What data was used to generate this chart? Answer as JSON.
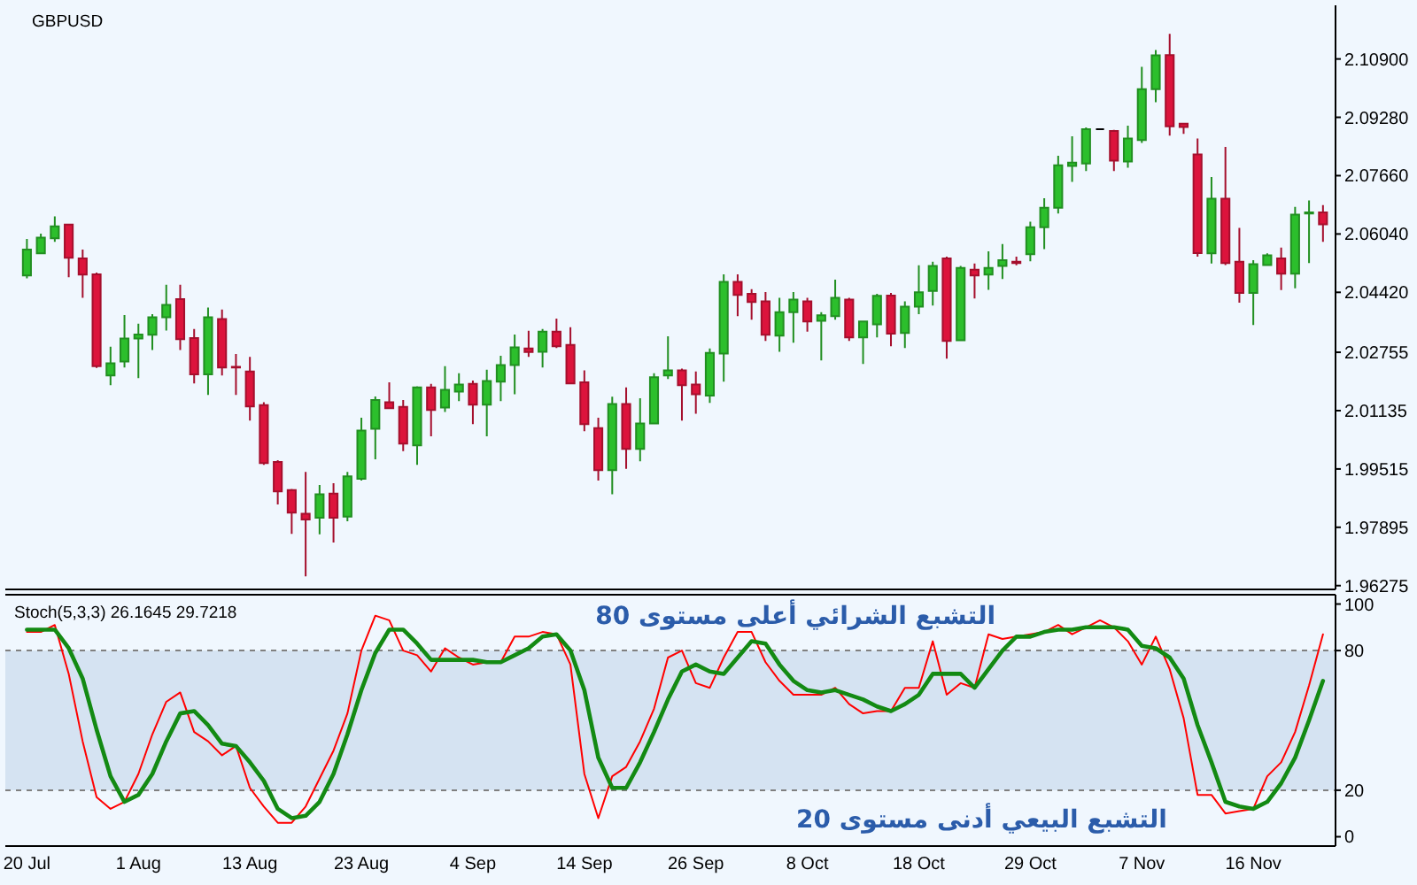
{
  "chart_data": [
    {
      "type": "candlestick",
      "title": "GBPUSD",
      "categories": [
        "20 Jul",
        null,
        null,
        null,
        null,
        null,
        null,
        null,
        "1 Aug",
        null,
        null,
        null,
        null,
        null,
        null,
        null,
        "13 Aug",
        null,
        null,
        null,
        null,
        null,
        null,
        null,
        "23 Aug",
        null,
        null,
        null,
        null,
        null,
        null,
        null,
        "4 Sep",
        null,
        null,
        null,
        null,
        null,
        null,
        null,
        "14 Sep",
        null,
        null,
        null,
        null,
        null,
        null,
        null,
        "26 Sep",
        null,
        null,
        null,
        null,
        null,
        null,
        null,
        "8 Oct",
        null,
        null,
        null,
        null,
        null,
        null,
        null,
        "18 Oct",
        null,
        null,
        null,
        null,
        null,
        null,
        null,
        "29 Oct",
        null,
        null,
        null,
        null,
        null,
        null,
        null,
        "7 Nov",
        null,
        null,
        null,
        null,
        null,
        null,
        null,
        "16 Nov",
        null,
        null,
        null,
        null,
        null
      ],
      "ohlc": [
        [
          2.0489,
          2.059,
          2.0481,
          2.0561
        ],
        [
          2.055,
          2.0605,
          2.055,
          2.0594
        ],
        [
          2.0592,
          2.0653,
          2.0582,
          2.0625
        ],
        [
          2.063,
          2.063,
          2.0484,
          2.0538
        ],
        [
          2.0536,
          2.0561,
          2.0427,
          2.0491
        ],
        [
          2.0492,
          2.0497,
          2.0232,
          2.0237
        ],
        [
          2.0211,
          2.0291,
          2.0184,
          2.0245
        ],
        [
          2.025,
          2.0379,
          2.0233,
          2.0314
        ],
        [
          2.0314,
          2.0355,
          2.0204,
          2.0325
        ],
        [
          2.0324,
          2.0381,
          2.0282,
          2.0373
        ],
        [
          2.0373,
          2.0463,
          2.0336,
          2.0407
        ],
        [
          2.0423,
          2.0463,
          2.0282,
          2.0312
        ],
        [
          2.0315,
          2.034,
          2.0189,
          2.0214
        ],
        [
          2.0214,
          2.04,
          2.0157,
          2.0373
        ],
        [
          2.0368,
          2.0394,
          2.0211,
          2.0233
        ],
        [
          2.0235,
          2.0271,
          2.0157,
          2.0233
        ],
        [
          2.0222,
          2.0263,
          2.0086,
          2.0125
        ],
        [
          2.0129,
          2.0137,
          1.9963,
          1.9968
        ],
        [
          1.9971,
          1.9976,
          1.9853,
          1.9889
        ],
        [
          1.9893,
          1.9896,
          1.9771,
          1.983
        ],
        [
          1.9827,
          1.9943,
          1.9653,
          1.9811
        ],
        [
          1.9816,
          1.9907,
          1.977,
          1.9881
        ],
        [
          1.9883,
          1.9912,
          1.9747,
          1.9816
        ],
        [
          1.9819,
          1.9943,
          1.9806,
          1.9931
        ],
        [
          1.9924,
          2.0094,
          1.9919,
          2.0058
        ],
        [
          2.0063,
          2.0153,
          1.9978,
          2.0143
        ],
        [
          2.0137,
          2.0192,
          2.012,
          2.012
        ],
        [
          2.0124,
          2.0143,
          2.0001,
          2.0022
        ],
        [
          2.0017,
          2.0181,
          1.9963,
          2.0178
        ],
        [
          2.0178,
          2.0188,
          2.0042,
          2.0115
        ],
        [
          2.0122,
          2.0237,
          2.011,
          2.0171
        ],
        [
          2.0166,
          2.0217,
          2.014,
          2.0186
        ],
        [
          2.0188,
          2.0197,
          2.0076,
          2.013
        ],
        [
          2.013,
          2.0227,
          2.0042,
          2.0196
        ],
        [
          2.0194,
          2.0266,
          2.014,
          2.024
        ],
        [
          2.024,
          2.0325,
          2.0159,
          2.0289
        ],
        [
          2.0286,
          2.0335,
          2.0263,
          2.0276
        ],
        [
          2.0277,
          2.034,
          2.0233,
          2.0333
        ],
        [
          2.0333,
          2.0369,
          2.0287,
          2.0292
        ],
        [
          2.0296,
          2.0345,
          2.0189,
          2.0189
        ],
        [
          2.0192,
          2.0225,
          2.0056,
          2.0076
        ],
        [
          2.0065,
          2.0094,
          1.9919,
          1.9948
        ],
        [
          1.9948,
          2.0152,
          1.9881,
          2.0132
        ],
        [
          2.0132,
          2.0178,
          1.9952,
          2.0007
        ],
        [
          2.0007,
          2.0148,
          1.9973,
          2.0078
        ],
        [
          2.0078,
          2.0217,
          2.0078,
          2.0206
        ],
        [
          2.0211,
          2.032,
          2.0201,
          2.0225
        ],
        [
          2.0225,
          2.023,
          2.0086,
          2.0184
        ],
        [
          2.0186,
          2.0222,
          2.0105,
          2.0159
        ],
        [
          2.0155,
          2.0286,
          2.0135,
          2.0274
        ],
        [
          2.0272,
          2.0492,
          2.0194,
          2.0471
        ],
        [
          2.0471,
          2.0492,
          2.0376,
          2.0435
        ],
        [
          2.0438,
          2.0451,
          2.0366,
          2.0415
        ],
        [
          2.0417,
          2.0443,
          2.0307,
          2.0324
        ],
        [
          2.0322,
          2.0427,
          2.0277,
          2.0387
        ],
        [
          2.0387,
          2.0443,
          2.0302,
          2.0422
        ],
        [
          2.0417,
          2.0427,
          2.0333,
          2.0361
        ],
        [
          2.0363,
          2.0387,
          2.0253,
          2.0378
        ],
        [
          2.0376,
          2.0477,
          2.0366,
          2.0427
        ],
        [
          2.0422,
          2.0427,
          2.0307,
          2.0317
        ],
        [
          2.0317,
          2.0363,
          2.0243,
          2.0361
        ],
        [
          2.0353,
          2.0438,
          2.0317,
          2.0432
        ],
        [
          2.0433,
          2.044,
          2.0292,
          2.0327
        ],
        [
          2.0329,
          2.0417,
          2.0287,
          2.0402
        ],
        [
          2.0402,
          2.0517,
          2.0381,
          2.0442
        ],
        [
          2.0446,
          2.0527,
          2.0405,
          2.0515
        ],
        [
          2.0536,
          2.0541,
          2.0258,
          2.0307
        ],
        [
          2.0309,
          2.0515,
          2.0309,
          2.051
        ],
        [
          2.0505,
          2.0522,
          2.0425,
          2.0489
        ],
        [
          2.0491,
          2.0556,
          2.0449,
          2.051
        ],
        [
          2.0515,
          2.0576,
          2.0479,
          2.0531
        ],
        [
          2.0527,
          2.0541,
          2.0517,
          2.0523
        ],
        [
          2.0548,
          2.0638,
          2.0528,
          2.0623
        ],
        [
          2.0623,
          2.0703,
          2.0562,
          2.0677
        ],
        [
          2.0677,
          2.0821,
          2.0661,
          2.0795
        ],
        [
          2.0793,
          2.0875,
          2.0749,
          2.0802
        ],
        [
          2.08,
          2.09,
          2.0779,
          2.0895
        ],
        [
          2.0895,
          2.0895,
          2.0895,
          2.0895
        ],
        [
          2.089,
          2.0893,
          2.0779,
          2.0808
        ],
        [
          2.0805,
          2.0905,
          2.0788,
          2.0869
        ],
        [
          2.0865,
          2.1068,
          2.0857,
          2.1006
        ],
        [
          2.1006,
          2.1115,
          2.097,
          2.11
        ],
        [
          2.1101,
          2.116,
          2.0877,
          2.0903
        ],
        [
          2.091,
          2.091,
          2.0882,
          2.0901
        ],
        [
          2.0825,
          2.0869,
          2.0541,
          2.0551
        ],
        [
          2.055,
          2.0762,
          2.0522,
          2.0702
        ],
        [
          2.0702,
          2.0846,
          2.0518,
          2.0523
        ],
        [
          2.0527,
          2.0621,
          2.0413,
          2.044
        ],
        [
          2.044,
          2.0531,
          2.0351,
          2.052
        ],
        [
          2.0518,
          2.055,
          2.0518,
          2.0545
        ],
        [
          2.0536,
          2.0566,
          2.0448,
          2.0494
        ],
        [
          2.0494,
          2.0679,
          2.0453,
          2.0658
        ],
        [
          2.0661,
          2.0697,
          2.0523,
          2.0664
        ],
        [
          2.0664,
          2.0684,
          2.0582,
          2.0631
        ]
      ],
      "colors": [
        "#2cbf2c",
        "#2cbf2c",
        "#2cbf2c",
        "#dc143c",
        "#dc143c",
        "#dc143c",
        "#2cbf2c",
        "#2cbf2c",
        "#2cbf2c",
        "#2cbf2c",
        "#2cbf2c",
        "#dc143c",
        "#dc143c",
        "#2cbf2c",
        "#dc143c",
        "#dc143c",
        "#dc143c",
        "#dc143c",
        "#dc143c",
        "#dc143c",
        "#dc143c",
        "#2cbf2c",
        "#dc143c",
        "#2cbf2c",
        "#2cbf2c",
        "#2cbf2c",
        "#dc143c",
        "#dc143c",
        "#2cbf2c",
        "#dc143c",
        "#2cbf2c",
        "#2cbf2c",
        "#dc143c",
        "#2cbf2c",
        "#2cbf2c",
        "#2cbf2c",
        "#dc143c",
        "#2cbf2c",
        "#dc143c",
        "#dc143c",
        "#dc143c",
        "#dc143c",
        "#2cbf2c",
        "#dc143c",
        "#2cbf2c",
        "#2cbf2c",
        "#2cbf2c",
        "#dc143c",
        "#dc143c",
        "#2cbf2c",
        "#2cbf2c",
        "#dc143c",
        "#dc143c",
        "#dc143c",
        "#2cbf2c",
        "#2cbf2c",
        "#dc143c",
        "#2cbf2c",
        "#2cbf2c",
        "#dc143c",
        "#2cbf2c",
        "#2cbf2c",
        "#dc143c",
        "#2cbf2c",
        "#2cbf2c",
        "#2cbf2c",
        "#dc143c",
        "#2cbf2c",
        "#dc143c",
        "#2cbf2c",
        "#2cbf2c",
        "#dc143c",
        "#2cbf2c",
        "#2cbf2c",
        "#2cbf2c",
        "#2cbf2c",
        "#2cbf2c",
        "#000000",
        "#dc143c",
        "#2cbf2c",
        "#2cbf2c",
        "#2cbf2c",
        "#dc143c",
        "#dc143c",
        "#dc143c",
        "#2cbf2c",
        "#dc143c",
        "#dc143c",
        "#2cbf2c",
        "#2cbf2c",
        "#dc143c",
        "#2cbf2c",
        "#2cbf2c",
        "#dc143c"
      ],
      "ylim": [
        1.9617,
        2.1239
      ],
      "yticks": [
        {
          "value": 2.109,
          "label": "2.10900"
        },
        {
          "value": 2.0928,
          "label": "2.09280"
        },
        {
          "value": 2.0766,
          "label": "2.07660"
        },
        {
          "value": 2.0604,
          "label": "2.06040"
        },
        {
          "value": 2.0442,
          "label": "2.04420"
        },
        {
          "value": 2.02755,
          "label": "2.02755"
        },
        {
          "value": 2.01135,
          "label": "2.01135"
        },
        {
          "value": 1.99515,
          "label": "1.99515"
        },
        {
          "value": 1.97895,
          "label": "1.97895"
        },
        {
          "value": 1.96275,
          "label": "1.96275"
        }
      ],
      "tick_labels": "y"
    },
    {
      "type": "line",
      "title": "Stoch(5,3,3) 26.1645 29.7218",
      "categories": [
        "20 Jul",
        null,
        null,
        null,
        null,
        null,
        null,
        null,
        "1 Aug",
        null,
        null,
        null,
        null,
        null,
        null,
        null,
        "13 Aug",
        null,
        null,
        null,
        null,
        null,
        null,
        null,
        "23 Aug",
        null,
        null,
        null,
        null,
        null,
        null,
        null,
        "4 Sep",
        null,
        null,
        null,
        null,
        null,
        null,
        null,
        "14 Sep",
        null,
        null,
        null,
        null,
        null,
        null,
        null,
        "26 Sep",
        null,
        null,
        null,
        null,
        null,
        null,
        null,
        "8 Oct",
        null,
        null,
        null,
        null,
        null,
        null,
        null,
        "18 Oct",
        null,
        null,
        null,
        null,
        null,
        null,
        null,
        "29 Oct",
        null,
        null,
        null,
        null,
        null,
        null,
        null,
        "7 Nov",
        null,
        null,
        null,
        null,
        null,
        null,
        null,
        "16 Nov",
        null,
        null,
        null,
        null,
        null
      ],
      "series": [
        {
          "color": "#ff0000",
          "values": [
            88,
            88,
            91,
            70,
            41,
            17,
            12,
            15,
            27,
            44,
            58,
            62,
            45,
            41,
            35,
            39,
            21,
            13,
            6,
            6,
            13,
            25,
            37,
            53,
            80,
            95,
            93,
            80,
            78,
            71,
            81,
            77,
            74,
            75,
            75,
            86,
            86,
            88,
            87,
            74,
            27,
            8,
            26,
            30,
            41,
            55,
            77,
            80,
            66,
            64,
            77,
            88,
            88,
            75,
            67,
            61,
            61,
            61,
            64,
            57,
            53,
            54,
            54,
            64,
            64,
            84,
            61,
            66,
            64,
            87,
            85,
            86,
            87,
            88,
            91,
            87,
            90,
            93,
            90,
            84,
            74,
            86,
            72,
            51,
            18,
            18,
            10,
            11,
            12,
            26,
            32,
            45,
            65,
            87
          ]
        },
        {
          "color": "#138a13",
          "values": [
            89,
            89,
            89,
            81,
            68,
            46,
            26,
            15,
            18,
            27,
            41,
            53,
            54,
            48,
            40,
            39,
            32,
            24,
            12,
            8,
            9,
            15,
            27,
            44,
            63,
            79,
            89,
            89,
            83,
            76,
            76,
            76,
            76,
            75,
            75,
            78,
            81,
            86,
            87,
            80,
            63,
            34,
            21,
            21,
            32,
            45,
            59,
            71,
            74,
            71,
            70,
            77,
            84,
            83,
            74,
            67,
            63,
            62,
            63,
            61,
            59,
            56,
            54,
            57,
            61,
            70,
            70,
            70,
            64,
            72,
            80,
            86,
            86,
            88,
            89,
            89,
            90,
            90,
            90,
            89,
            82,
            81,
            77,
            68,
            48,
            32,
            15,
            13,
            12,
            15,
            23,
            34,
            50,
            67
          ]
        }
      ],
      "ylim": [
        -4,
        104
      ],
      "yticks": [
        0,
        20,
        80,
        100
      ],
      "ref_lines": [
        {
          "axis": "y",
          "value": 80,
          "label": "التشبع الشرائي أعلى مستوى 80",
          "color": "#808080",
          "line_style": "dashed"
        },
        {
          "axis": "y",
          "value": 20,
          "label": "التشبع البيعي أدنى مستوى 20",
          "color": "#808080",
          "line_style": "dashed"
        }
      ],
      "bands": [
        {
          "axis": "y",
          "from": 20,
          "to": 80,
          "color": "#d5e3f2"
        }
      ]
    }
  ]
}
